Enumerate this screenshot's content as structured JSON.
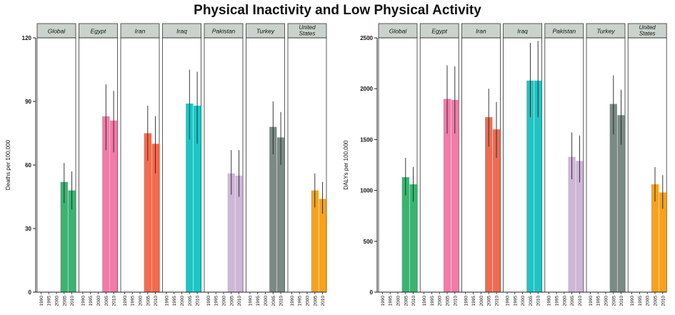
{
  "title": "Physical Inactivity and Low Physical Activity",
  "chart_data": [
    {
      "type": "bar",
      "title": "Physical Inactivity and Low Physical Activity",
      "ylabel": "Deaths per 100,000",
      "ylim": [
        0,
        120
      ],
      "yticks": [
        0,
        30,
        60,
        90,
        120
      ],
      "x_ticks": [
        "1990",
        "1995",
        "2000",
        "2005",
        "2010"
      ],
      "panels": [
        {
          "name": "Global",
          "color": "#3cb371",
          "values": [
            null,
            null,
            null,
            52,
            48
          ],
          "upper": [
            null,
            null,
            null,
            61,
            57
          ],
          "lower": [
            null,
            null,
            null,
            42,
            39
          ]
        },
        {
          "name": "Egypt",
          "color": "#f07ca8",
          "values": [
            null,
            null,
            null,
            83,
            81
          ],
          "upper": [
            null,
            null,
            null,
            98,
            95
          ],
          "lower": [
            null,
            null,
            null,
            67,
            66
          ]
        },
        {
          "name": "Iran",
          "color": "#f26b4f",
          "values": [
            null,
            null,
            null,
            75,
            70
          ],
          "upper": [
            null,
            null,
            null,
            88,
            83
          ],
          "lower": [
            null,
            null,
            null,
            62,
            56
          ]
        },
        {
          "name": "Iraq",
          "color": "#20c4c4",
          "values": [
            null,
            null,
            null,
            89,
            88
          ],
          "upper": [
            null,
            null,
            null,
            105,
            104
          ],
          "lower": [
            null,
            null,
            null,
            72,
            70
          ]
        },
        {
          "name": "Pakistan",
          "color": "#cdb6d6",
          "values": [
            null,
            null,
            null,
            56,
            55
          ],
          "upper": [
            null,
            null,
            null,
            67,
            67
          ],
          "lower": [
            null,
            null,
            null,
            46,
            45
          ]
        },
        {
          "name": "Turkey",
          "color": "#7b8a85",
          "values": [
            null,
            null,
            null,
            78,
            73
          ],
          "upper": [
            null,
            null,
            null,
            90,
            85
          ],
          "lower": [
            null,
            null,
            null,
            65,
            60
          ]
        },
        {
          "name": "United States",
          "color": "#f7a21b",
          "values": [
            null,
            null,
            null,
            48,
            44
          ],
          "upper": [
            null,
            null,
            null,
            56,
            52
          ],
          "lower": [
            null,
            null,
            null,
            40,
            37
          ]
        }
      ]
    },
    {
      "type": "bar",
      "title": "Physical Inactivity and Low Physical Activity",
      "ylabel": "DALYs per 100,000",
      "ylim": [
        0,
        2500
      ],
      "yticks": [
        0,
        500,
        1000,
        1500,
        2000,
        2500
      ],
      "x_ticks": [
        "1990",
        "1995",
        "2000",
        "2005",
        "2010"
      ],
      "panels": [
        {
          "name": "Global",
          "color": "#3cb371",
          "values": [
            null,
            null,
            null,
            1130,
            1060
          ],
          "upper": [
            null,
            null,
            null,
            1320,
            1230
          ],
          "lower": [
            null,
            null,
            null,
            950,
            890
          ]
        },
        {
          "name": "Egypt",
          "color": "#f07ca8",
          "values": [
            null,
            null,
            null,
            1900,
            1890
          ],
          "upper": [
            null,
            null,
            null,
            2230,
            2220
          ],
          "lower": [
            null,
            null,
            null,
            1560,
            1560
          ]
        },
        {
          "name": "Iran",
          "color": "#f26b4f",
          "values": [
            null,
            null,
            null,
            1720,
            1600
          ],
          "upper": [
            null,
            null,
            null,
            2000,
            1870
          ],
          "lower": [
            null,
            null,
            null,
            1430,
            1320
          ]
        },
        {
          "name": "Iraq",
          "color": "#20c4c4",
          "values": [
            null,
            null,
            null,
            2080,
            2080
          ],
          "upper": [
            null,
            null,
            null,
            2450,
            2470
          ],
          "lower": [
            null,
            null,
            null,
            1720,
            1720
          ]
        },
        {
          "name": "Pakistan",
          "color": "#cdb6d6",
          "values": [
            null,
            null,
            null,
            1330,
            1290
          ],
          "upper": [
            null,
            null,
            null,
            1570,
            1540
          ],
          "lower": [
            null,
            null,
            null,
            1110,
            1080
          ]
        },
        {
          "name": "Turkey",
          "color": "#7b8a85",
          "values": [
            null,
            null,
            null,
            1850,
            1740
          ],
          "upper": [
            null,
            null,
            null,
            2130,
            1990
          ],
          "lower": [
            null,
            null,
            null,
            1550,
            1450
          ]
        },
        {
          "name": "United States",
          "color": "#f7a21b",
          "values": [
            null,
            null,
            null,
            1060,
            980
          ],
          "upper": [
            null,
            null,
            null,
            1230,
            1150
          ],
          "lower": [
            null,
            null,
            null,
            890,
            820
          ]
        }
      ]
    }
  ]
}
